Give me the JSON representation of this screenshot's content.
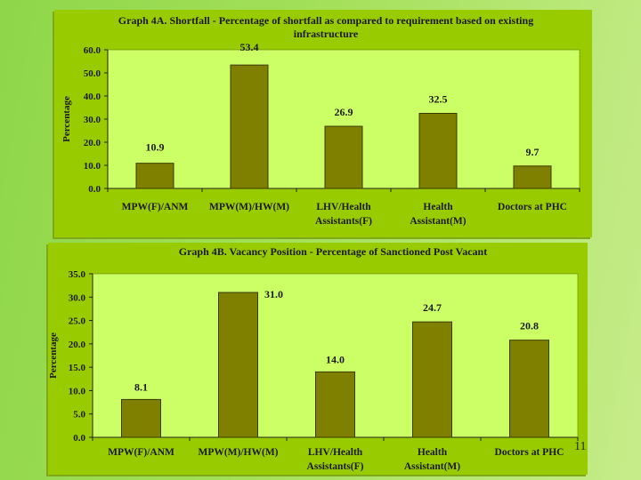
{
  "page_number": "11",
  "colors": {
    "panel": "#99cc00",
    "plot_area": "#ccff66",
    "bar": "#808000",
    "bar_stroke": "#3a3a00"
  },
  "chart_data": [
    {
      "type": "bar",
      "title": "Graph 4A. Shortfall - Percentage of shortfall as compared to requirement based on existing infrastructure",
      "ylabel": "Percentage",
      "xlabel": "",
      "ylim": [
        0,
        60
      ],
      "yticks": [
        "0.0",
        "10.0",
        "20.0",
        "30.0",
        "40.0",
        "50.0",
        "60.0"
      ],
      "categories": [
        [
          "MPW(F)/ANM"
        ],
        [
          "MPW(M)/HW(M)"
        ],
        [
          "LHV/Health",
          "Assistants(F)"
        ],
        [
          "Health",
          "Assistant(M)"
        ],
        [
          "Doctors at PHC"
        ]
      ],
      "values": [
        10.9,
        53.4,
        26.9,
        32.5,
        9.7
      ],
      "value_labels": [
        "10.9",
        "53.4",
        "26.9",
        "32.5",
        "9.7"
      ]
    },
    {
      "type": "bar",
      "title": "Graph 4B. Vacancy Position - Percentage of Sanctioned Post Vacant",
      "ylabel": "Percentage",
      "xlabel": "",
      "ylim": [
        0,
        35
      ],
      "yticks": [
        "0.0",
        "5.0",
        "10.0",
        "15.0",
        "20.0",
        "25.0",
        "30.0",
        "35.0"
      ],
      "categories": [
        [
          "MPW(F)/ANM"
        ],
        [
          "MPW(M)/HW(M)"
        ],
        [
          "LHV/Health",
          "Assistants(F)"
        ],
        [
          "Health",
          "Assistant(M)"
        ],
        [
          "Doctors at PHC"
        ]
      ],
      "values": [
        8.1,
        31.0,
        14.0,
        24.7,
        20.8
      ],
      "value_labels": [
        "8.1",
        "31.0",
        "14.0",
        "24.7",
        "20.8"
      ]
    }
  ]
}
